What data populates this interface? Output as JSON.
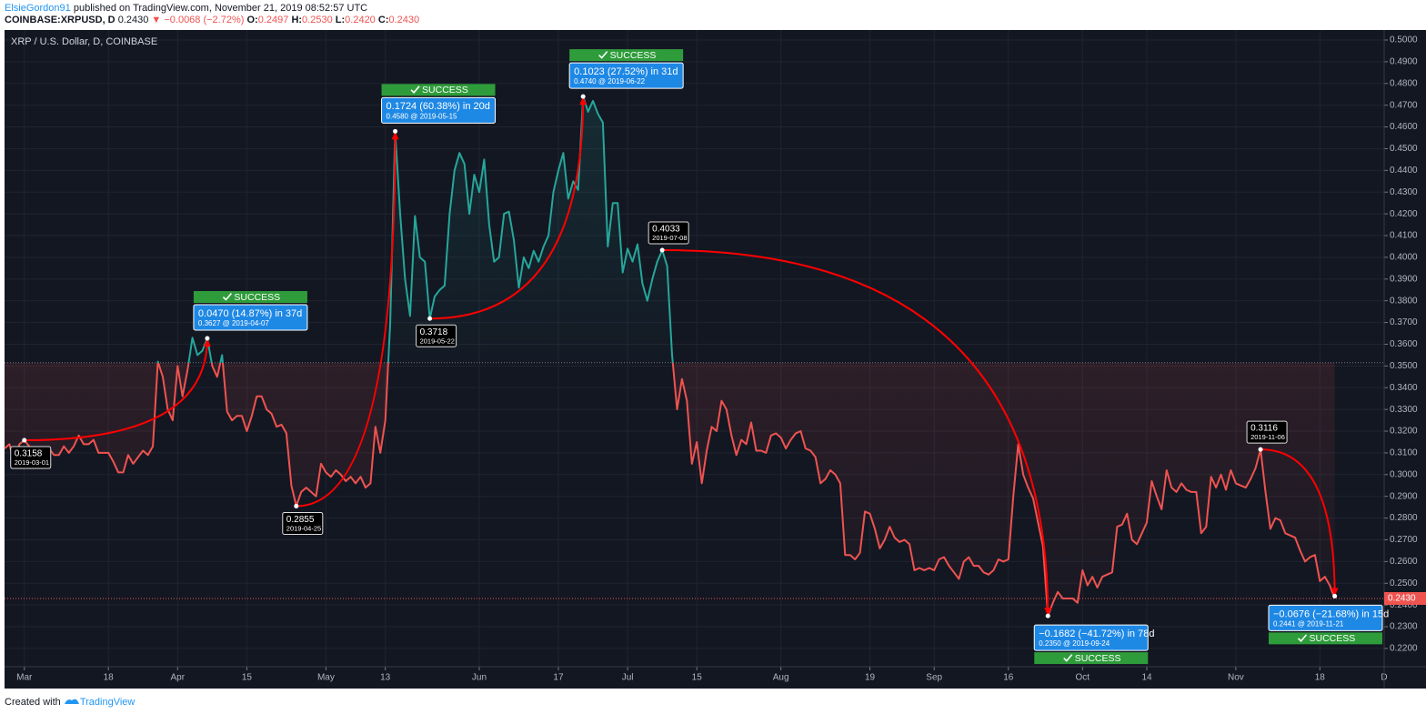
{
  "header": {
    "author": "ElsieGordon91",
    "published": "published on TradingView.com, November 21, 2019 08:52:57 UTC",
    "symbol": "COINBASE:XRPUSD, D",
    "price": "0.2430",
    "change": "▼ −0.0068 (−2.72%)",
    "ohlc": [
      {
        "label": "O:",
        "value": "0.2497"
      },
      {
        "label": "H:",
        "value": "0.2530"
      },
      {
        "label": "L:",
        "value": "0.2420"
      },
      {
        "label": "C:",
        "value": "0.2430"
      }
    ]
  },
  "footer": {
    "created": "Created with",
    "brand": "TradingView"
  },
  "chart_data": {
    "type": "line",
    "title": "XRP / U.S. Dollar, D, COINBASE",
    "colors": {
      "up": "#26a69a",
      "down": "#ef5350",
      "background": "#131722",
      "grid": "#1f2430"
    },
    "baseline": 0.3515,
    "last_price": {
      "value": 0.243,
      "label": "0.2430"
    },
    "xlim": [
      "2019-02-25",
      "2019-12-01"
    ],
    "xticks": [
      {
        "value": "2019-03-01",
        "label": "Mar"
      },
      {
        "value": "2019-03-18",
        "label": "18"
      },
      {
        "value": "2019-04-01",
        "label": "Apr"
      },
      {
        "value": "2019-04-15",
        "label": "15"
      },
      {
        "value": "2019-05-01",
        "label": "May"
      },
      {
        "value": "2019-05-13",
        "label": "13"
      },
      {
        "value": "2019-06-01",
        "label": "Jun"
      },
      {
        "value": "2019-06-17",
        "label": "17"
      },
      {
        "value": "2019-07-01",
        "label": "Jul"
      },
      {
        "value": "2019-07-15",
        "label": "15"
      },
      {
        "value": "2019-08-01",
        "label": "Aug"
      },
      {
        "value": "2019-08-19",
        "label": "19"
      },
      {
        "value": "2019-09-01",
        "label": "Sep"
      },
      {
        "value": "2019-09-16",
        "label": "16"
      },
      {
        "value": "2019-10-01",
        "label": "Oct"
      },
      {
        "value": "2019-10-14",
        "label": "14"
      },
      {
        "value": "2019-11-01",
        "label": "Nov"
      },
      {
        "value": "2019-11-18",
        "label": "18"
      },
      {
        "value": "2019-12-01",
        "label": "D"
      }
    ],
    "ylim": [
      0.2116,
      0.5046
    ],
    "yticks": [
      {
        "value": 0.22,
        "label": "0.2200"
      },
      {
        "value": 0.23,
        "label": "0.2300"
      },
      {
        "value": 0.24,
        "label": "0.2400"
      },
      {
        "value": 0.25,
        "label": "0.2500"
      },
      {
        "value": 0.26,
        "label": "0.2600"
      },
      {
        "value": 0.27,
        "label": "0.2700"
      },
      {
        "value": 0.28,
        "label": "0.2800"
      },
      {
        "value": 0.29,
        "label": "0.2900"
      },
      {
        "value": 0.3,
        "label": "0.3000"
      },
      {
        "value": 0.31,
        "label": "0.3100"
      },
      {
        "value": 0.32,
        "label": "0.3200"
      },
      {
        "value": 0.33,
        "label": "0.3300"
      },
      {
        "value": 0.34,
        "label": "0.3400"
      },
      {
        "value": 0.35,
        "label": "0.3500"
      },
      {
        "value": 0.36,
        "label": "0.3600"
      },
      {
        "value": 0.37,
        "label": "0.3700"
      },
      {
        "value": 0.38,
        "label": "0.3800"
      },
      {
        "value": 0.39,
        "label": "0.3900"
      },
      {
        "value": 0.4,
        "label": "0.4000"
      },
      {
        "value": 0.41,
        "label": "0.4100"
      },
      {
        "value": 0.42,
        "label": "0.4200"
      },
      {
        "value": 0.43,
        "label": "0.4300"
      },
      {
        "value": 0.44,
        "label": "0.4400"
      },
      {
        "value": 0.45,
        "label": "0.4500"
      },
      {
        "value": 0.46,
        "label": "0.4600"
      },
      {
        "value": 0.47,
        "label": "0.4700"
      },
      {
        "value": 0.48,
        "label": "0.4800"
      },
      {
        "value": 0.49,
        "label": "0.4900"
      },
      {
        "value": 0.5,
        "label": "0.5000"
      }
    ],
    "grid": true,
    "x": [
      "2019-02-25",
      "2019-02-26",
      "2019-02-27",
      "2019-02-28",
      "2019-03-01",
      "2019-03-02",
      "2019-03-03",
      "2019-03-04",
      "2019-03-05",
      "2019-03-06",
      "2019-03-07",
      "2019-03-08",
      "2019-03-09",
      "2019-03-10",
      "2019-03-11",
      "2019-03-12",
      "2019-03-13",
      "2019-03-14",
      "2019-03-15",
      "2019-03-16",
      "2019-03-17",
      "2019-03-18",
      "2019-03-19",
      "2019-03-20",
      "2019-03-21",
      "2019-03-22",
      "2019-03-23",
      "2019-03-24",
      "2019-03-25",
      "2019-03-26",
      "2019-03-27",
      "2019-03-28",
      "2019-03-29",
      "2019-03-30",
      "2019-03-31",
      "2019-04-01",
      "2019-04-02",
      "2019-04-03",
      "2019-04-04",
      "2019-04-05",
      "2019-04-06",
      "2019-04-07",
      "2019-04-08",
      "2019-04-09",
      "2019-04-10",
      "2019-04-11",
      "2019-04-12",
      "2019-04-13",
      "2019-04-14",
      "2019-04-15",
      "2019-04-16",
      "2019-04-17",
      "2019-04-18",
      "2019-04-19",
      "2019-04-20",
      "2019-04-21",
      "2019-04-22",
      "2019-04-23",
      "2019-04-24",
      "2019-04-25",
      "2019-04-26",
      "2019-04-27",
      "2019-04-28",
      "2019-04-29",
      "2019-04-30",
      "2019-05-01",
      "2019-05-02",
      "2019-05-03",
      "2019-05-04",
      "2019-05-05",
      "2019-05-06",
      "2019-05-07",
      "2019-05-08",
      "2019-05-09",
      "2019-05-10",
      "2019-05-11",
      "2019-05-12",
      "2019-05-13",
      "2019-05-14",
      "2019-05-15",
      "2019-05-16",
      "2019-05-17",
      "2019-05-18",
      "2019-05-19",
      "2019-05-20",
      "2019-05-21",
      "2019-05-22",
      "2019-05-23",
      "2019-05-24",
      "2019-05-25",
      "2019-05-26",
      "2019-05-27",
      "2019-05-28",
      "2019-05-29",
      "2019-05-30",
      "2019-05-31",
      "2019-06-01",
      "2019-06-02",
      "2019-06-03",
      "2019-06-04",
      "2019-06-05",
      "2019-06-06",
      "2019-06-07",
      "2019-06-08",
      "2019-06-09",
      "2019-06-10",
      "2019-06-11",
      "2019-06-12",
      "2019-06-13",
      "2019-06-14",
      "2019-06-15",
      "2019-06-16",
      "2019-06-17",
      "2019-06-18",
      "2019-06-19",
      "2019-06-20",
      "2019-06-21",
      "2019-06-22",
      "2019-06-23",
      "2019-06-24",
      "2019-06-25",
      "2019-06-26",
      "2019-06-27",
      "2019-06-28",
      "2019-06-29",
      "2019-06-30",
      "2019-07-01",
      "2019-07-02",
      "2019-07-03",
      "2019-07-04",
      "2019-07-05",
      "2019-07-06",
      "2019-07-07",
      "2019-07-08",
      "2019-07-09",
      "2019-07-10",
      "2019-07-11",
      "2019-07-12",
      "2019-07-13",
      "2019-07-14",
      "2019-07-15",
      "2019-07-16",
      "2019-07-17",
      "2019-07-18",
      "2019-07-19",
      "2019-07-20",
      "2019-07-21",
      "2019-07-22",
      "2019-07-23",
      "2019-07-24",
      "2019-07-25",
      "2019-07-26",
      "2019-07-27",
      "2019-07-28",
      "2019-07-29",
      "2019-07-30",
      "2019-07-31",
      "2019-08-01",
      "2019-08-02",
      "2019-08-03",
      "2019-08-04",
      "2019-08-05",
      "2019-08-06",
      "2019-08-07",
      "2019-08-08",
      "2019-08-09",
      "2019-08-10",
      "2019-08-11",
      "2019-08-12",
      "2019-08-13",
      "2019-08-14",
      "2019-08-15",
      "2019-08-16",
      "2019-08-17",
      "2019-08-18",
      "2019-08-19",
      "2019-08-20",
      "2019-08-21",
      "2019-08-22",
      "2019-08-23",
      "2019-08-24",
      "2019-08-25",
      "2019-08-26",
      "2019-08-27",
      "2019-08-28",
      "2019-08-29",
      "2019-08-30",
      "2019-08-31",
      "2019-09-01",
      "2019-09-02",
      "2019-09-03",
      "2019-09-04",
      "2019-09-05",
      "2019-09-06",
      "2019-09-07",
      "2019-09-08",
      "2019-09-09",
      "2019-09-10",
      "2019-09-11",
      "2019-09-12",
      "2019-09-13",
      "2019-09-14",
      "2019-09-15",
      "2019-09-16",
      "2019-09-17",
      "2019-09-18",
      "2019-09-19",
      "2019-09-20",
      "2019-09-21",
      "2019-09-22",
      "2019-09-23",
      "2019-09-24",
      "2019-09-25",
      "2019-09-26",
      "2019-09-27",
      "2019-09-28",
      "2019-09-29",
      "2019-09-30",
      "2019-10-01",
      "2019-10-02",
      "2019-10-03",
      "2019-10-04",
      "2019-10-05",
      "2019-10-06",
      "2019-10-07",
      "2019-10-08",
      "2019-10-09",
      "2019-10-10",
      "2019-10-11",
      "2019-10-12",
      "2019-10-13",
      "2019-10-14",
      "2019-10-15",
      "2019-10-16",
      "2019-10-17",
      "2019-10-18",
      "2019-10-19",
      "2019-10-20",
      "2019-10-21",
      "2019-10-22",
      "2019-10-23",
      "2019-10-24",
      "2019-10-25",
      "2019-10-26",
      "2019-10-27",
      "2019-10-28",
      "2019-10-29",
      "2019-10-30",
      "2019-10-31",
      "2019-11-01",
      "2019-11-02",
      "2019-11-03",
      "2019-11-04",
      "2019-11-05",
      "2019-11-06",
      "2019-11-07",
      "2019-11-08",
      "2019-11-09",
      "2019-11-10",
      "2019-11-11",
      "2019-11-12",
      "2019-11-13",
      "2019-11-14",
      "2019-11-15",
      "2019-11-16",
      "2019-11-17",
      "2019-11-18",
      "2019-11-19",
      "2019-11-20",
      "2019-11-21"
    ],
    "values": [
      0.312,
      0.314,
      0.305,
      0.314,
      0.3158,
      0.313,
      0.311,
      0.305,
      0.312,
      0.312,
      0.309,
      0.309,
      0.313,
      0.31,
      0.313,
      0.318,
      0.314,
      0.314,
      0.316,
      0.31,
      0.31,
      0.31,
      0.306,
      0.301,
      0.301,
      0.309,
      0.305,
      0.308,
      0.311,
      0.309,
      0.313,
      0.352,
      0.345,
      0.33,
      0.325,
      0.35,
      0.336,
      0.348,
      0.363,
      0.355,
      0.357,
      0.3627,
      0.35,
      0.345,
      0.355,
      0.329,
      0.325,
      0.327,
      0.327,
      0.32,
      0.327,
      0.336,
      0.336,
      0.33,
      0.328,
      0.322,
      0.323,
      0.319,
      0.295,
      0.2855,
      0.292,
      0.294,
      0.292,
      0.29,
      0.305,
      0.301,
      0.299,
      0.302,
      0.3,
      0.297,
      0.299,
      0.296,
      0.299,
      0.294,
      0.296,
      0.322,
      0.31,
      0.325,
      0.37,
      0.458,
      0.42,
      0.39,
      0.373,
      0.419,
      0.4,
      0.398,
      0.3718,
      0.382,
      0.385,
      0.387,
      0.42,
      0.44,
      0.448,
      0.443,
      0.42,
      0.438,
      0.43,
      0.445,
      0.415,
      0.398,
      0.4,
      0.42,
      0.421,
      0.408,
      0.386,
      0.4,
      0.395,
      0.403,
      0.398,
      0.405,
      0.41,
      0.43,
      0.44,
      0.448,
      0.427,
      0.435,
      0.431,
      0.474,
      0.467,
      0.472,
      0.466,
      0.462,
      0.405,
      0.425,
      0.425,
      0.393,
      0.404,
      0.398,
      0.406,
      0.388,
      0.38,
      0.39,
      0.398,
      0.4033,
      0.396,
      0.355,
      0.33,
      0.344,
      0.334,
      0.305,
      0.315,
      0.296,
      0.311,
      0.322,
      0.32,
      0.334,
      0.33,
      0.318,
      0.309,
      0.316,
      0.314,
      0.324,
      0.311,
      0.311,
      0.31,
      0.318,
      0.319,
      0.317,
      0.312,
      0.316,
      0.319,
      0.32,
      0.312,
      0.311,
      0.308,
      0.296,
      0.298,
      0.302,
      0.3,
      0.296,
      0.263,
      0.263,
      0.261,
      0.264,
      0.283,
      0.282,
      0.275,
      0.266,
      0.27,
      0.276,
      0.271,
      0.269,
      0.27,
      0.268,
      0.256,
      0.257,
      0.256,
      0.257,
      0.256,
      0.261,
      0.262,
      0.258,
      0.255,
      0.252,
      0.26,
      0.262,
      0.258,
      0.258,
      0.255,
      0.254,
      0.256,
      0.261,
      0.26,
      0.261,
      0.29,
      0.314,
      0.3,
      0.294,
      0.289,
      0.278,
      0.267,
      0.235,
      0.241,
      0.246,
      0.243,
      0.243,
      0.243,
      0.241,
      0.256,
      0.249,
      0.253,
      0.248,
      0.253,
      0.254,
      0.255,
      0.276,
      0.277,
      0.282,
      0.27,
      0.268,
      0.273,
      0.278,
      0.297,
      0.29,
      0.284,
      0.302,
      0.294,
      0.292,
      0.296,
      0.293,
      0.292,
      0.292,
      0.273,
      0.276,
      0.299,
      0.294,
      0.3,
      0.293,
      0.302,
      0.296,
      0.295,
      0.294,
      0.298,
      0.303,
      0.3116,
      0.292,
      0.275,
      0.28,
      0.279,
      0.273,
      0.272,
      0.271,
      0.265,
      0.26,
      0.262,
      0.263,
      0.251,
      0.253,
      0.249,
      0.243
    ],
    "projections": [
      {
        "from": {
          "value": 0.3158,
          "date": "2019-03-01"
        },
        "to": {
          "value": 0.3627,
          "date": "2019-04-07"
        },
        "change": "0.0470 (14.87%) in 37d",
        "target": "0.3627 @ 2019-04-07",
        "status": "SUCCESS"
      },
      {
        "from": {
          "value": 0.2855,
          "date": "2019-04-25"
        },
        "to": {
          "value": 0.458,
          "date": "2019-05-15"
        },
        "change": "0.1724 (60.38%) in 20d",
        "target": "0.4580 @ 2019-05-15",
        "status": "SUCCESS"
      },
      {
        "from": {
          "value": 0.3718,
          "date": "2019-05-22"
        },
        "to": {
          "value": 0.474,
          "date": "2019-06-22"
        },
        "change": "0.1023 (27.52%) in 31d",
        "target": "0.4740 @ 2019-06-22",
        "status": "SUCCESS"
      },
      {
        "from": {
          "value": 0.4033,
          "date": "2019-07-08"
        },
        "to": {
          "value": 0.235,
          "date": "2019-09-24"
        },
        "change": "−0.1682 (−41.72%) in 78d",
        "target": "0.2350 @ 2019-09-24",
        "status": "SUCCESS"
      },
      {
        "from": {
          "value": 0.3116,
          "date": "2019-11-06"
        },
        "to": {
          "value": 0.2441,
          "date": "2019-11-21"
        },
        "change": "−0.0676 (−21.68%) in 15d",
        "target": "0.2441 @ 2019-11-21",
        "status": "SUCCESS"
      }
    ]
  }
}
